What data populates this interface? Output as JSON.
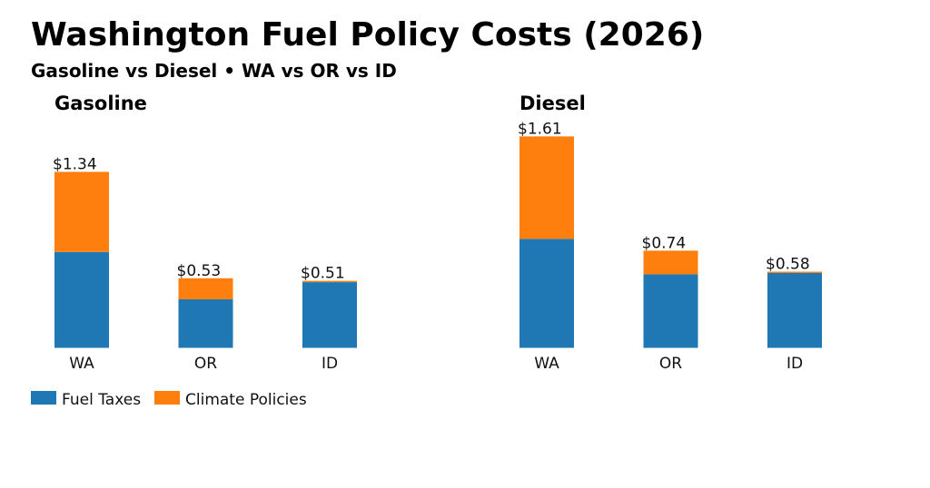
{
  "title": "Washington Fuel Policy Costs (2026)",
  "subtitle": "Gasoline vs Diesel • WA vs OR vs ID",
  "colors": {
    "fuel_taxes": "#1f77b4",
    "climate_policies": "#ff7f0e"
  },
  "chart_data": [
    {
      "type": "bar",
      "stacked": true,
      "title": "Gasoline",
      "categories": [
        "WA",
        "OR",
        "ID"
      ],
      "series": [
        {
          "name": "Fuel Taxes",
          "values": [
            0.73,
            0.37,
            0.5
          ]
        },
        {
          "name": "Climate Policies",
          "values": [
            0.61,
            0.16,
            0.01
          ]
        }
      ],
      "data_labels": [
        "$1.34",
        "$0.53",
        "$0.51"
      ],
      "ylim": [
        0,
        1.7
      ],
      "grid": false,
      "legend": "bottom-left"
    },
    {
      "type": "bar",
      "stacked": true,
      "title": "Diesel",
      "categories": [
        "WA",
        "OR",
        "ID"
      ],
      "series": [
        {
          "name": "Fuel Taxes",
          "values": [
            0.83,
            0.56,
            0.57
          ]
        },
        {
          "name": "Climate Policies",
          "values": [
            0.78,
            0.18,
            0.01
          ]
        }
      ],
      "data_labels": [
        "$1.61",
        "$0.74",
        "$0.58"
      ],
      "ylim": [
        0,
        1.7
      ],
      "grid": false
    }
  ]
}
